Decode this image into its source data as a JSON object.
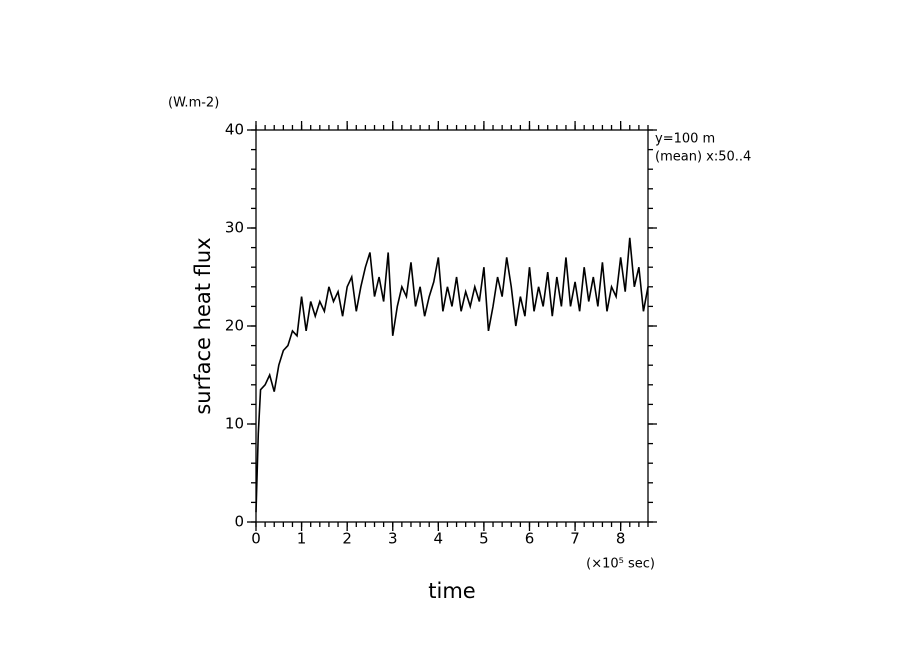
{
  "chart_data": {
    "type": "line",
    "xlabel": "time",
    "ylabel": "surface heat flux",
    "x_unit": "(×10⁵ sec)",
    "y_unit": "(W.m-2)",
    "annotations": [
      "y=100 m",
      "(mean) x:50..4"
    ],
    "xlim": [
      0,
      8.6
    ],
    "ylim": [
      0,
      40
    ],
    "xticks": [
      0,
      1,
      2,
      3,
      4,
      5,
      6,
      7,
      8
    ],
    "yticks": [
      0,
      10,
      20,
      30,
      40
    ],
    "minor_ticks": true,
    "series": [
      {
        "color": "#000000",
        "x": [
          0,
          0.05,
          0.1,
          0.2,
          0.3,
          0.4,
          0.5,
          0.6,
          0.7,
          0.8,
          0.9,
          1.0,
          1.1,
          1.2,
          1.3,
          1.4,
          1.5,
          1.6,
          1.7,
          1.8,
          1.9,
          2.0,
          2.1,
          2.2,
          2.3,
          2.4,
          2.5,
          2.6,
          2.7,
          2.8,
          2.9,
          3.0,
          3.1,
          3.2,
          3.3,
          3.4,
          3.5,
          3.6,
          3.7,
          3.8,
          3.9,
          4.0,
          4.1,
          4.2,
          4.3,
          4.4,
          4.5,
          4.6,
          4.7,
          4.8,
          4.9,
          5.0,
          5.1,
          5.2,
          5.3,
          5.4,
          5.5,
          5.6,
          5.7,
          5.8,
          5.9,
          6.0,
          6.1,
          6.2,
          6.3,
          6.4,
          6.5,
          6.6,
          6.7,
          6.8,
          6.9,
          7.0,
          7.1,
          7.2,
          7.3,
          7.4,
          7.5,
          7.6,
          7.7,
          7.8,
          7.9,
          8.0,
          8.1,
          8.2,
          8.3,
          8.4,
          8.5,
          8.6
        ],
        "values": [
          1,
          9,
          13.5,
          14,
          15,
          13.3,
          16,
          17.5,
          18,
          19.5,
          19,
          23,
          19.5,
          22.5,
          21,
          22.5,
          21.5,
          24,
          22.5,
          23.5,
          21,
          24,
          25,
          21.5,
          24,
          26,
          27.5,
          23,
          25,
          22.5,
          27.5,
          19,
          22,
          24,
          23,
          26.5,
          22,
          24,
          21,
          23,
          24.5,
          27,
          21.5,
          24,
          22,
          25,
          21.5,
          23.5,
          22,
          24,
          22.5,
          26,
          19.5,
          22,
          25,
          23,
          27,
          24,
          20,
          23,
          21,
          26,
          21.5,
          24,
          22,
          25.5,
          21,
          25,
          22,
          27,
          22,
          24.5,
          21.5,
          26,
          22.5,
          25,
          22,
          26.5,
          21.5,
          24,
          23,
          27,
          23.5,
          29,
          24,
          26,
          21.5,
          24
        ]
      }
    ]
  }
}
